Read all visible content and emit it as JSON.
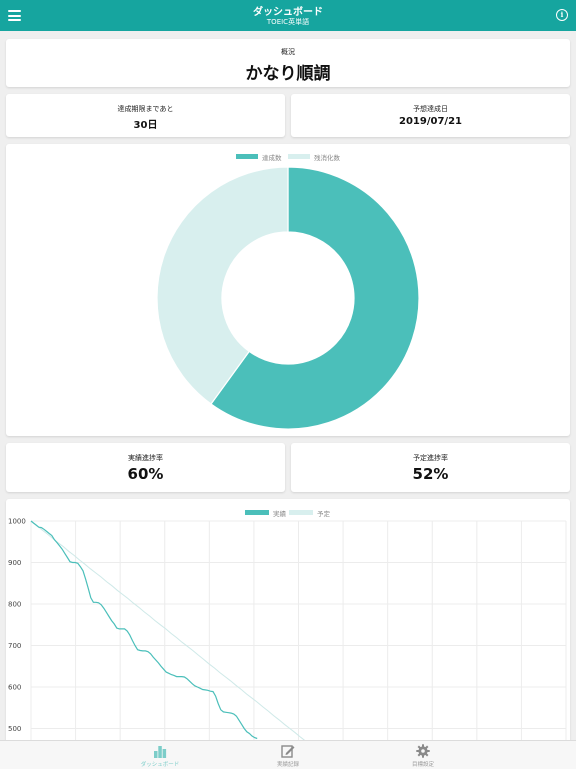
{
  "header": {
    "title": "ダッシュボード",
    "subtitle": "TOEIC英単語"
  },
  "overview": {
    "label": "概況",
    "status": "かなり順調"
  },
  "deadline": {
    "label": "達成期限まであと",
    "value": "30日"
  },
  "forecast": {
    "label": "予想達成日",
    "value": "2019/07/21"
  },
  "actual_progress": {
    "label": "実績進捗率",
    "value": "60%"
  },
  "planned_progress": {
    "label": "予定進捗率",
    "value": "52%"
  },
  "tabs": [
    {
      "label": "ダッシュボード",
      "icon": "bar-chart-icon",
      "active": true
    },
    {
      "label": "実績記録",
      "icon": "edit-icon",
      "active": false
    },
    {
      "label": "目標設定",
      "icon": "gear-icon",
      "active": false
    }
  ],
  "colors": {
    "accent": "#16a59f",
    "series_main": "#4bbfba",
    "series_light": "#d8efee",
    "tab_active": "#7ccdc9",
    "tab_inactive": "#9a9a9a"
  },
  "chart_data": [
    {
      "type": "pie",
      "labels": [
        "達成数",
        "残消化数"
      ],
      "values": [
        60,
        40
      ],
      "legend": "top"
    },
    {
      "type": "line",
      "series": [
        {
          "name": "実績",
          "values": [
            1000,
            995,
            990,
            985,
            984,
            980,
            975,
            970,
            965,
            955,
            948,
            940,
            932,
            922,
            912,
            902,
            900,
            900,
            898,
            890,
            880,
            860,
            838,
            815,
            804,
            804,
            803,
            798,
            790,
            780,
            770,
            760,
            752,
            742,
            740,
            740,
            740,
            735,
            725,
            712,
            700,
            690,
            688,
            687,
            687,
            685,
            680,
            672,
            665,
            658,
            650,
            643,
            636,
            633,
            630,
            628,
            625,
            625,
            625,
            624,
            620,
            614,
            608,
            603,
            600,
            597,
            594,
            593,
            592,
            590,
            589,
            578,
            560,
            545,
            540,
            539,
            538,
            537,
            535,
            530,
            520,
            510,
            500,
            492,
            488,
            482,
            478,
            476
          ]
        },
        {
          "name": "予定",
          "values": [
            1000,
            990,
            979,
            969,
            958,
            948,
            938,
            927,
            917,
            906,
            896,
            885,
            875,
            865,
            854,
            844,
            833,
            823,
            813,
            802,
            792,
            781,
            771,
            760,
            750,
            740,
            729,
            719,
            708,
            698,
            688,
            677,
            667,
            656,
            646,
            635,
            625,
            615,
            604,
            594,
            583,
            573,
            563,
            552,
            542,
            531,
            521,
            510,
            500,
            490,
            479,
            469
          ]
        }
      ],
      "x_ticks": [],
      "y_ticks": [
        1000,
        900,
        800,
        700,
        600,
        500
      ],
      "ylim": [
        470,
        1000
      ],
      "grid": true,
      "legend": "top"
    }
  ]
}
